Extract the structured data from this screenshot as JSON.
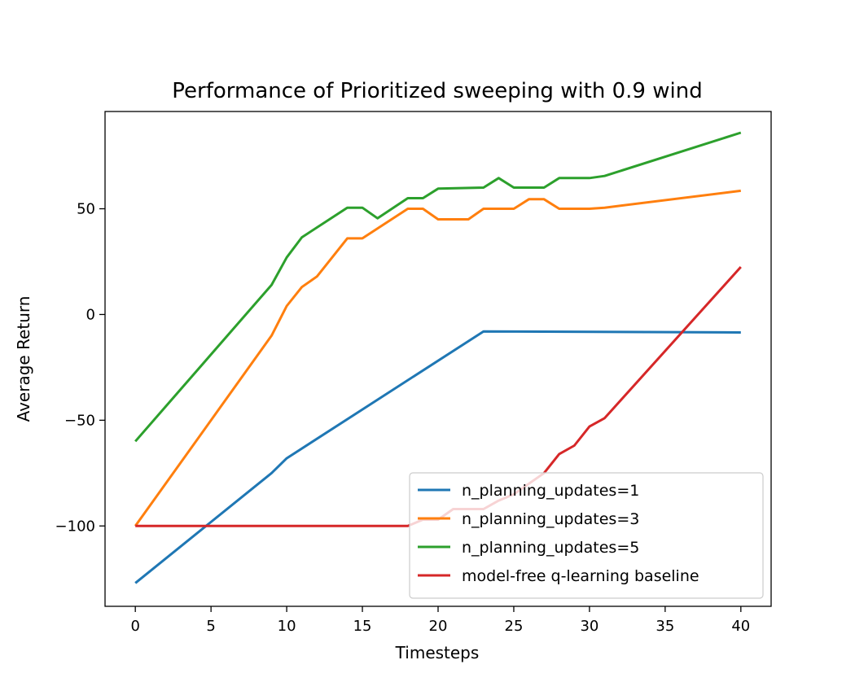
{
  "chart_data": {
    "type": "line",
    "title": "Performance of Prioritized sweeping with 0.9 wind",
    "xlabel": "Timesteps",
    "ylabel": "Average Return",
    "xlim": [
      -2,
      42
    ],
    "ylim": [
      -138,
      96
    ],
    "xticks": [
      0,
      5,
      10,
      15,
      20,
      25,
      30,
      35,
      40
    ],
    "yticks": [
      -100,
      -50,
      0,
      50
    ],
    "grid": false,
    "legend_position": "lower-right",
    "series": [
      {
        "name": "n_planning_updates=1",
        "color": "#1f77b4",
        "x": [
          0,
          9,
          10,
          23,
          40
        ],
        "y": [
          -127,
          -75,
          -68,
          -8,
          -8.5
        ]
      },
      {
        "name": "n_planning_updates=3",
        "color": "#ff7f0e",
        "x": [
          0,
          9,
          10,
          11,
          12,
          14,
          15,
          18,
          19,
          20,
          22,
          23,
          25,
          26,
          27,
          28,
          30,
          31,
          40
        ],
        "y": [
          -100,
          -10,
          4,
          13,
          18,
          36,
          36,
          50,
          50,
          45,
          45,
          50,
          50,
          54.5,
          54.5,
          50,
          50,
          50.5,
          58.5
        ]
      },
      {
        "name": "n_planning_updates=5",
        "color": "#2ca02c",
        "x": [
          0,
          9,
          10,
          11,
          14,
          15,
          16,
          18,
          19,
          20,
          23,
          24,
          25,
          27,
          28,
          30,
          31,
          40
        ],
        "y": [
          -60,
          14,
          27,
          36.5,
          50.5,
          50.5,
          45.5,
          55,
          55,
          59.5,
          60,
          64.5,
          60,
          60,
          64.5,
          64.5,
          65.5,
          86
        ]
      },
      {
        "name": "model-free q-learning baseline",
        "color": "#d62728",
        "x": [
          0,
          18,
          19,
          20,
          21,
          23,
          24,
          25,
          26,
          27,
          28,
          29,
          30,
          31,
          40
        ],
        "y": [
          -100,
          -100,
          -97,
          -97,
          -92,
          -92,
          -88,
          -85,
          -80,
          -75,
          -66,
          -62,
          -53,
          -49,
          22.5
        ]
      }
    ]
  }
}
